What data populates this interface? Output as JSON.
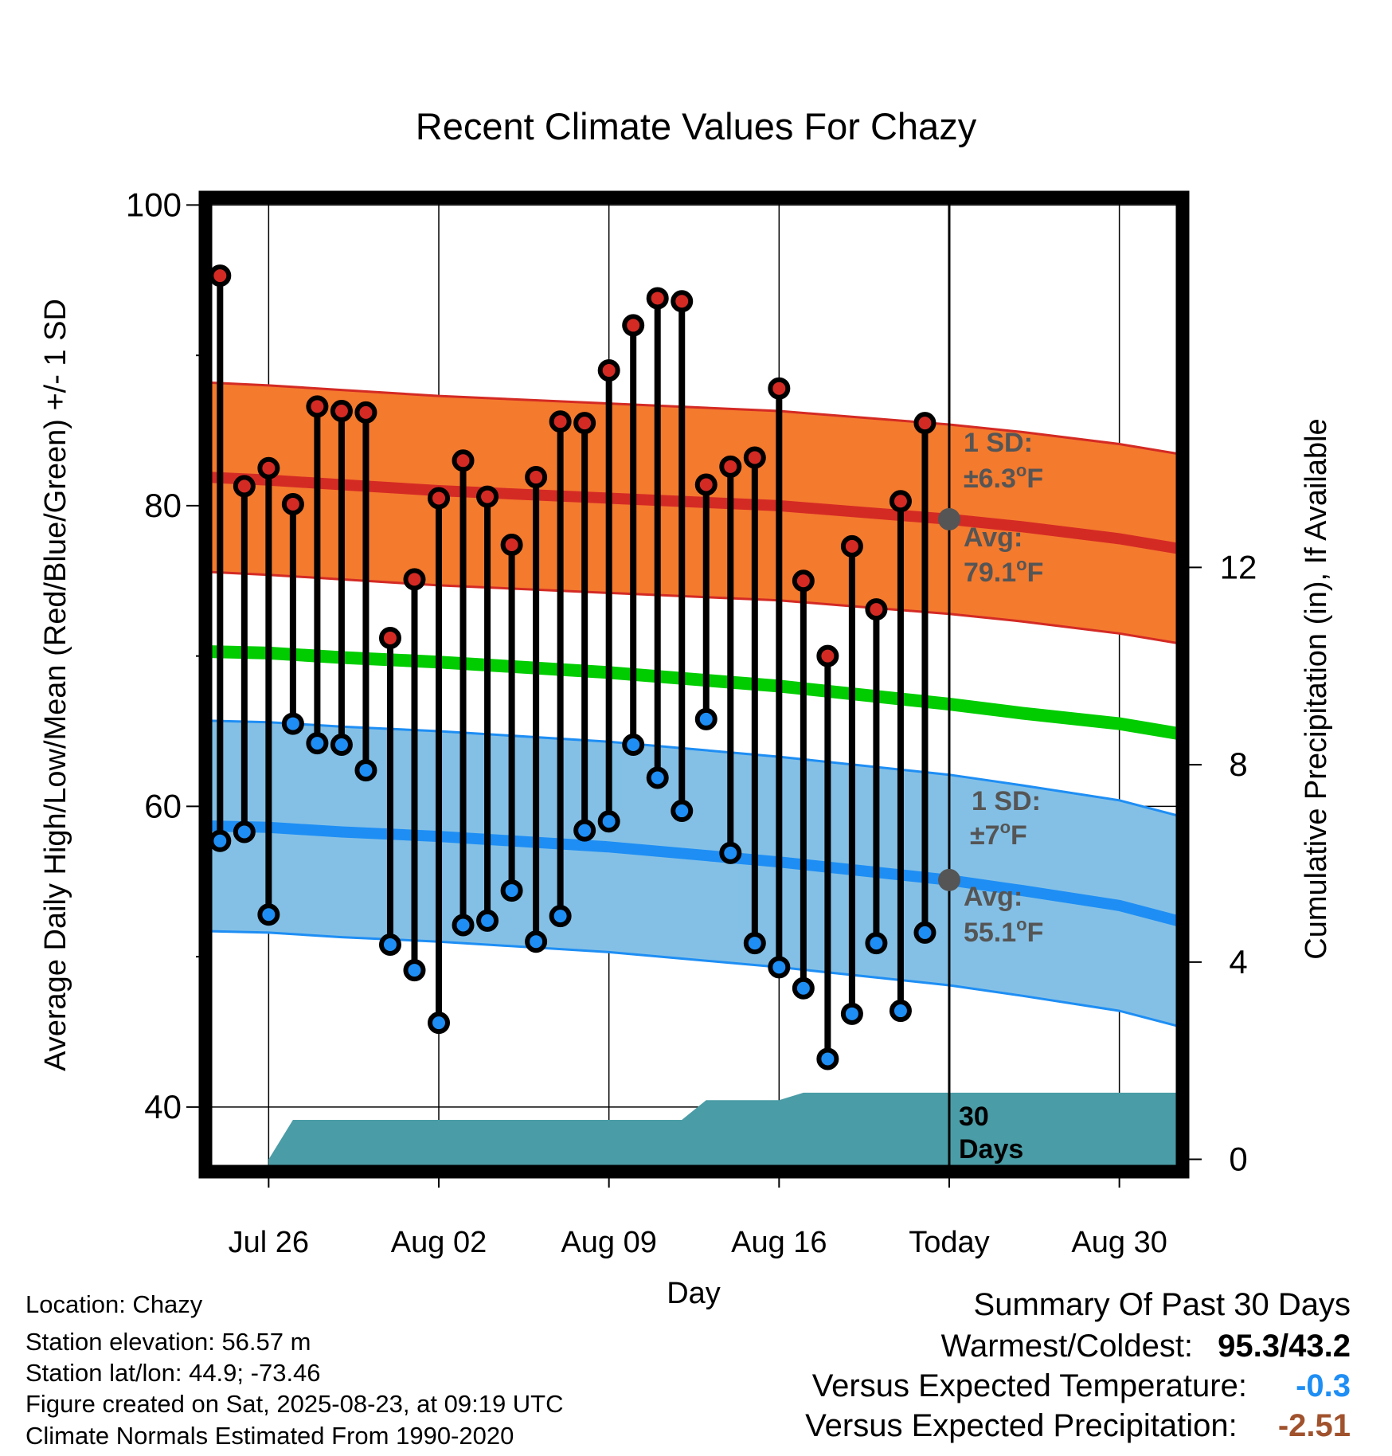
{
  "title": "Recent Climate Values For Chazy",
  "footer": {
    "location": "Location: Chazy",
    "elevation": "Station elevation: 56.57 m",
    "latlon": "Station lat/lon: 44.9; -73.46",
    "created": "Figure created on Sat, 2025-08-23, at 09:19 UTC",
    "normals": "Climate Normals Estimated From 1990-2020"
  },
  "summary": {
    "heading": "Summary Of Past 30 Days",
    "warmest_label": "Warmest/Coldest:",
    "warmest_value": "95.3/43.2",
    "temp_label": "Versus Expected Temperature:",
    "temp_value": "-0.3",
    "precip_label": "Versus Expected Precipitation:",
    "precip_value": "-2.51"
  },
  "chart_data": {
    "type": "line",
    "xlabel": "Day",
    "ylabel": "Average Daily High/Low/Mean (Red/Blue/Green) +/- 1 SD",
    "y2label": "Cumulative Precipitation (in), If Available",
    "ylim": [
      35.7,
      100.5
    ],
    "y2lim": [
      -0.25,
      19.5
    ],
    "xlim": [
      -2.6,
      37.6
    ],
    "y_ticks": [
      40,
      60,
      80,
      100
    ],
    "y_minor_ticks": [
      50,
      70,
      90
    ],
    "y2_ticks": [
      0,
      4,
      8,
      12
    ],
    "x_ticks": [
      {
        "day": 0,
        "label": "Jul 26"
      },
      {
        "day": 7,
        "label": "Aug 02"
      },
      {
        "day": 14,
        "label": "Aug 09"
      },
      {
        "day": 21,
        "label": "Aug 16"
      },
      {
        "day": 28,
        "label": "Today"
      },
      {
        "day": 35,
        "label": "Aug 30"
      }
    ],
    "today_day": 28,
    "grid": true,
    "colors": {
      "high_band": "#f47a2e",
      "high_line": "#d42a24",
      "mean_line": "#00cc00",
      "low_band": "#84c0e6",
      "low_line": "#1e8ef4",
      "precip": "#4a9ca6",
      "marker_high": "#d42a24",
      "marker_low": "#1e8ef4",
      "today_marker": "#555555",
      "annotation": "#555555"
    },
    "normal_days": [
      -2.6,
      0,
      3,
      7,
      14,
      21,
      28,
      31,
      35,
      37.6
    ],
    "normal_high": [
      81.9,
      81.7,
      81.4,
      81.0,
      80.5,
      80.0,
      79.1,
      78.6,
      77.8,
      77.1
    ],
    "normal_high_sd": 6.3,
    "normal_mean": [
      70.3,
      70.2,
      69.9,
      69.6,
      68.9,
      68.0,
      66.8,
      66.2,
      65.5,
      64.8
    ],
    "normal_low": [
      58.7,
      58.6,
      58.3,
      58.0,
      57.3,
      56.3,
      55.1,
      54.4,
      53.4,
      52.3
    ],
    "normal_low_sd": 7.0,
    "annotations": {
      "high_sd": "1 SD:",
      "high_sd_value": "±6.3",
      "high_avg": "Avg:",
      "high_avg_value": "79.1",
      "low_sd": "1 SD:",
      "low_sd_value": "±7",
      "low_avg": "Avg:",
      "low_avg_value": "55.1",
      "unit_deg": "o",
      "unit_F": "F",
      "days_count": "30",
      "days_word": "Days"
    },
    "daily": [
      {
        "day": -2,
        "high": 95.3,
        "low": 57.7
      },
      {
        "day": -1,
        "high": 81.3,
        "low": 58.3
      },
      {
        "day": 0,
        "high": 82.5,
        "low": 52.8
      },
      {
        "day": 1,
        "high": 80.1,
        "low": 65.5
      },
      {
        "day": 2,
        "high": 86.6,
        "low": 64.2
      },
      {
        "day": 3,
        "high": 86.3,
        "low": 64.1
      },
      {
        "day": 4,
        "high": 86.2,
        "low": 62.4
      },
      {
        "day": 5,
        "high": 71.2,
        "low": 50.8
      },
      {
        "day": 6,
        "high": 75.1,
        "low": 49.1
      },
      {
        "day": 7,
        "high": 80.5,
        "low": 45.6
      },
      {
        "day": 8,
        "high": 83.0,
        "low": 52.1
      },
      {
        "day": 9,
        "high": 80.6,
        "low": 52.4
      },
      {
        "day": 10,
        "high": 77.4,
        "low": 54.4
      },
      {
        "day": 11,
        "high": 81.9,
        "low": 51.0
      },
      {
        "day": 12,
        "high": 85.6,
        "low": 52.7
      },
      {
        "day": 13,
        "high": 85.5,
        "low": 58.4
      },
      {
        "day": 14,
        "high": 89.0,
        "low": 59.0
      },
      {
        "day": 15,
        "high": 92.0,
        "low": 64.1
      },
      {
        "day": 16,
        "high": 93.8,
        "low": 61.9
      },
      {
        "day": 17,
        "high": 93.6,
        "low": 59.7
      },
      {
        "day": 18,
        "high": 81.4,
        "low": 65.8
      },
      {
        "day": 19,
        "high": 82.6,
        "low": 56.9
      },
      {
        "day": 20,
        "high": 83.2,
        "low": 50.9
      },
      {
        "day": 21,
        "high": 87.8,
        "low": 49.3
      },
      {
        "day": 22,
        "high": 75.0,
        "low": 47.9
      },
      {
        "day": 23,
        "high": 70.0,
        "low": 43.2
      },
      {
        "day": 24,
        "high": 77.3,
        "low": 46.2
      },
      {
        "day": 25,
        "high": 73.1,
        "low": 50.9
      },
      {
        "day": 26,
        "high": 80.3,
        "low": 46.4
      },
      {
        "day": 27,
        "high": 85.5,
        "low": 51.6
      }
    ],
    "precip_cumulative": {
      "days": [
        0,
        1,
        17,
        18,
        21,
        22,
        37.6
      ],
      "values": [
        0,
        0.8,
        0.8,
        1.2,
        1.2,
        1.35,
        1.35
      ]
    }
  }
}
